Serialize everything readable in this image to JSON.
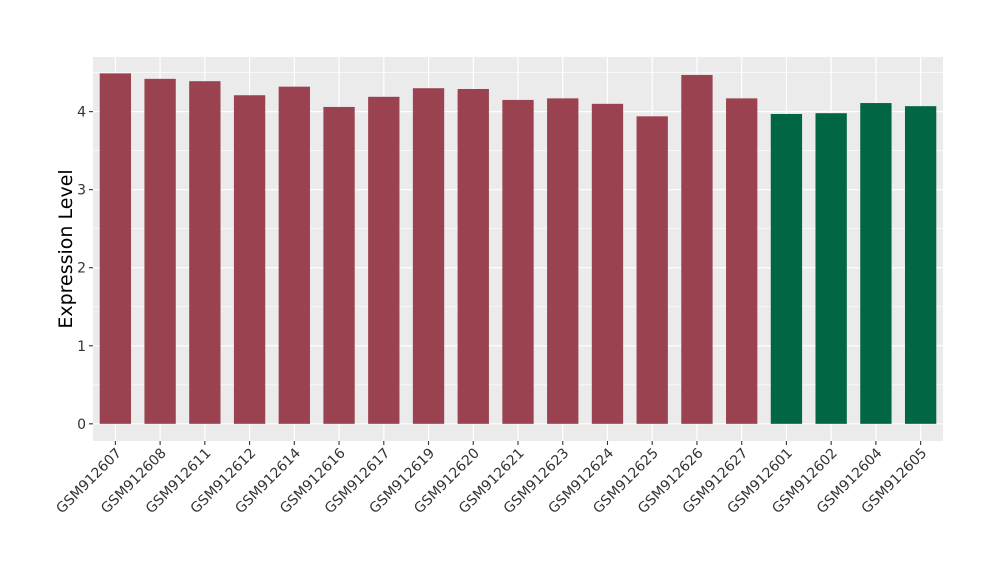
{
  "chart_data": {
    "type": "bar",
    "ylabel": "Expression Level",
    "xlabel": "",
    "ylim": [
      -0.22,
      4.7
    ],
    "yticks": [
      0,
      1,
      2,
      3,
      4
    ],
    "ytick_labels": [
      "0",
      "1",
      "2",
      "3",
      "4"
    ],
    "grid": true,
    "legend": "none",
    "colors": {
      "group_a": "#9B4250",
      "group_b": "#006644",
      "panel": "#EBEBEB",
      "grid": "#FFFFFF"
    },
    "categories": [
      "GSM912607",
      "GSM912608",
      "GSM912611",
      "GSM912612",
      "GSM912614",
      "GSM912616",
      "GSM912617",
      "GSM912619",
      "GSM912620",
      "GSM912621",
      "GSM912623",
      "GSM912624",
      "GSM912625",
      "GSM912626",
      "GSM912627",
      "GSM912601",
      "GSM912602",
      "GSM912604",
      "GSM912605"
    ],
    "values": [
      4.49,
      4.42,
      4.39,
      4.21,
      4.32,
      4.06,
      4.19,
      4.3,
      4.29,
      4.15,
      4.17,
      4.1,
      3.94,
      4.47,
      4.17,
      3.97,
      3.98,
      4.11,
      4.07
    ],
    "groups": [
      "a",
      "a",
      "a",
      "a",
      "a",
      "a",
      "a",
      "a",
      "a",
      "a",
      "a",
      "a",
      "a",
      "a",
      "a",
      "b",
      "b",
      "b",
      "b"
    ]
  }
}
